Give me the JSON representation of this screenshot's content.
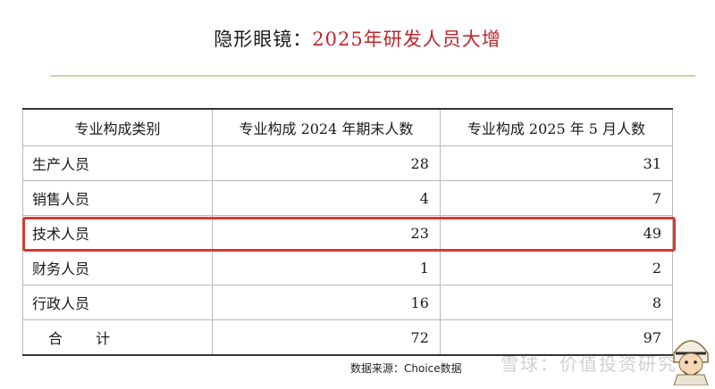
{
  "title": {
    "prefix": "隐形眼镜：",
    "highlight": "2025年研发人员大增"
  },
  "table": {
    "headers": [
      "专业构成类别",
      "专业构成 2024 年期末人数",
      "专业构成 2025 年 5 月人数"
    ],
    "rows": [
      {
        "category": "生产人员",
        "v2024": "28",
        "v2025": "31"
      },
      {
        "category": "销售人员",
        "v2024": "4",
        "v2025": "7"
      },
      {
        "category": "技术人员",
        "v2024": "23",
        "v2025": "49"
      },
      {
        "category": "财务人员",
        "v2024": "1",
        "v2025": "2"
      },
      {
        "category": "行政人员",
        "v2024": "16",
        "v2025": "8"
      },
      {
        "category": "合 计",
        "v2024": "72",
        "v2025": "97"
      }
    ]
  },
  "highlight_color": "#d63a32",
  "source": "数据来源：Choice数据",
  "watermark": "雪球：价值投资研究",
  "avatar_icon": "cartoon-avatar-icon"
}
